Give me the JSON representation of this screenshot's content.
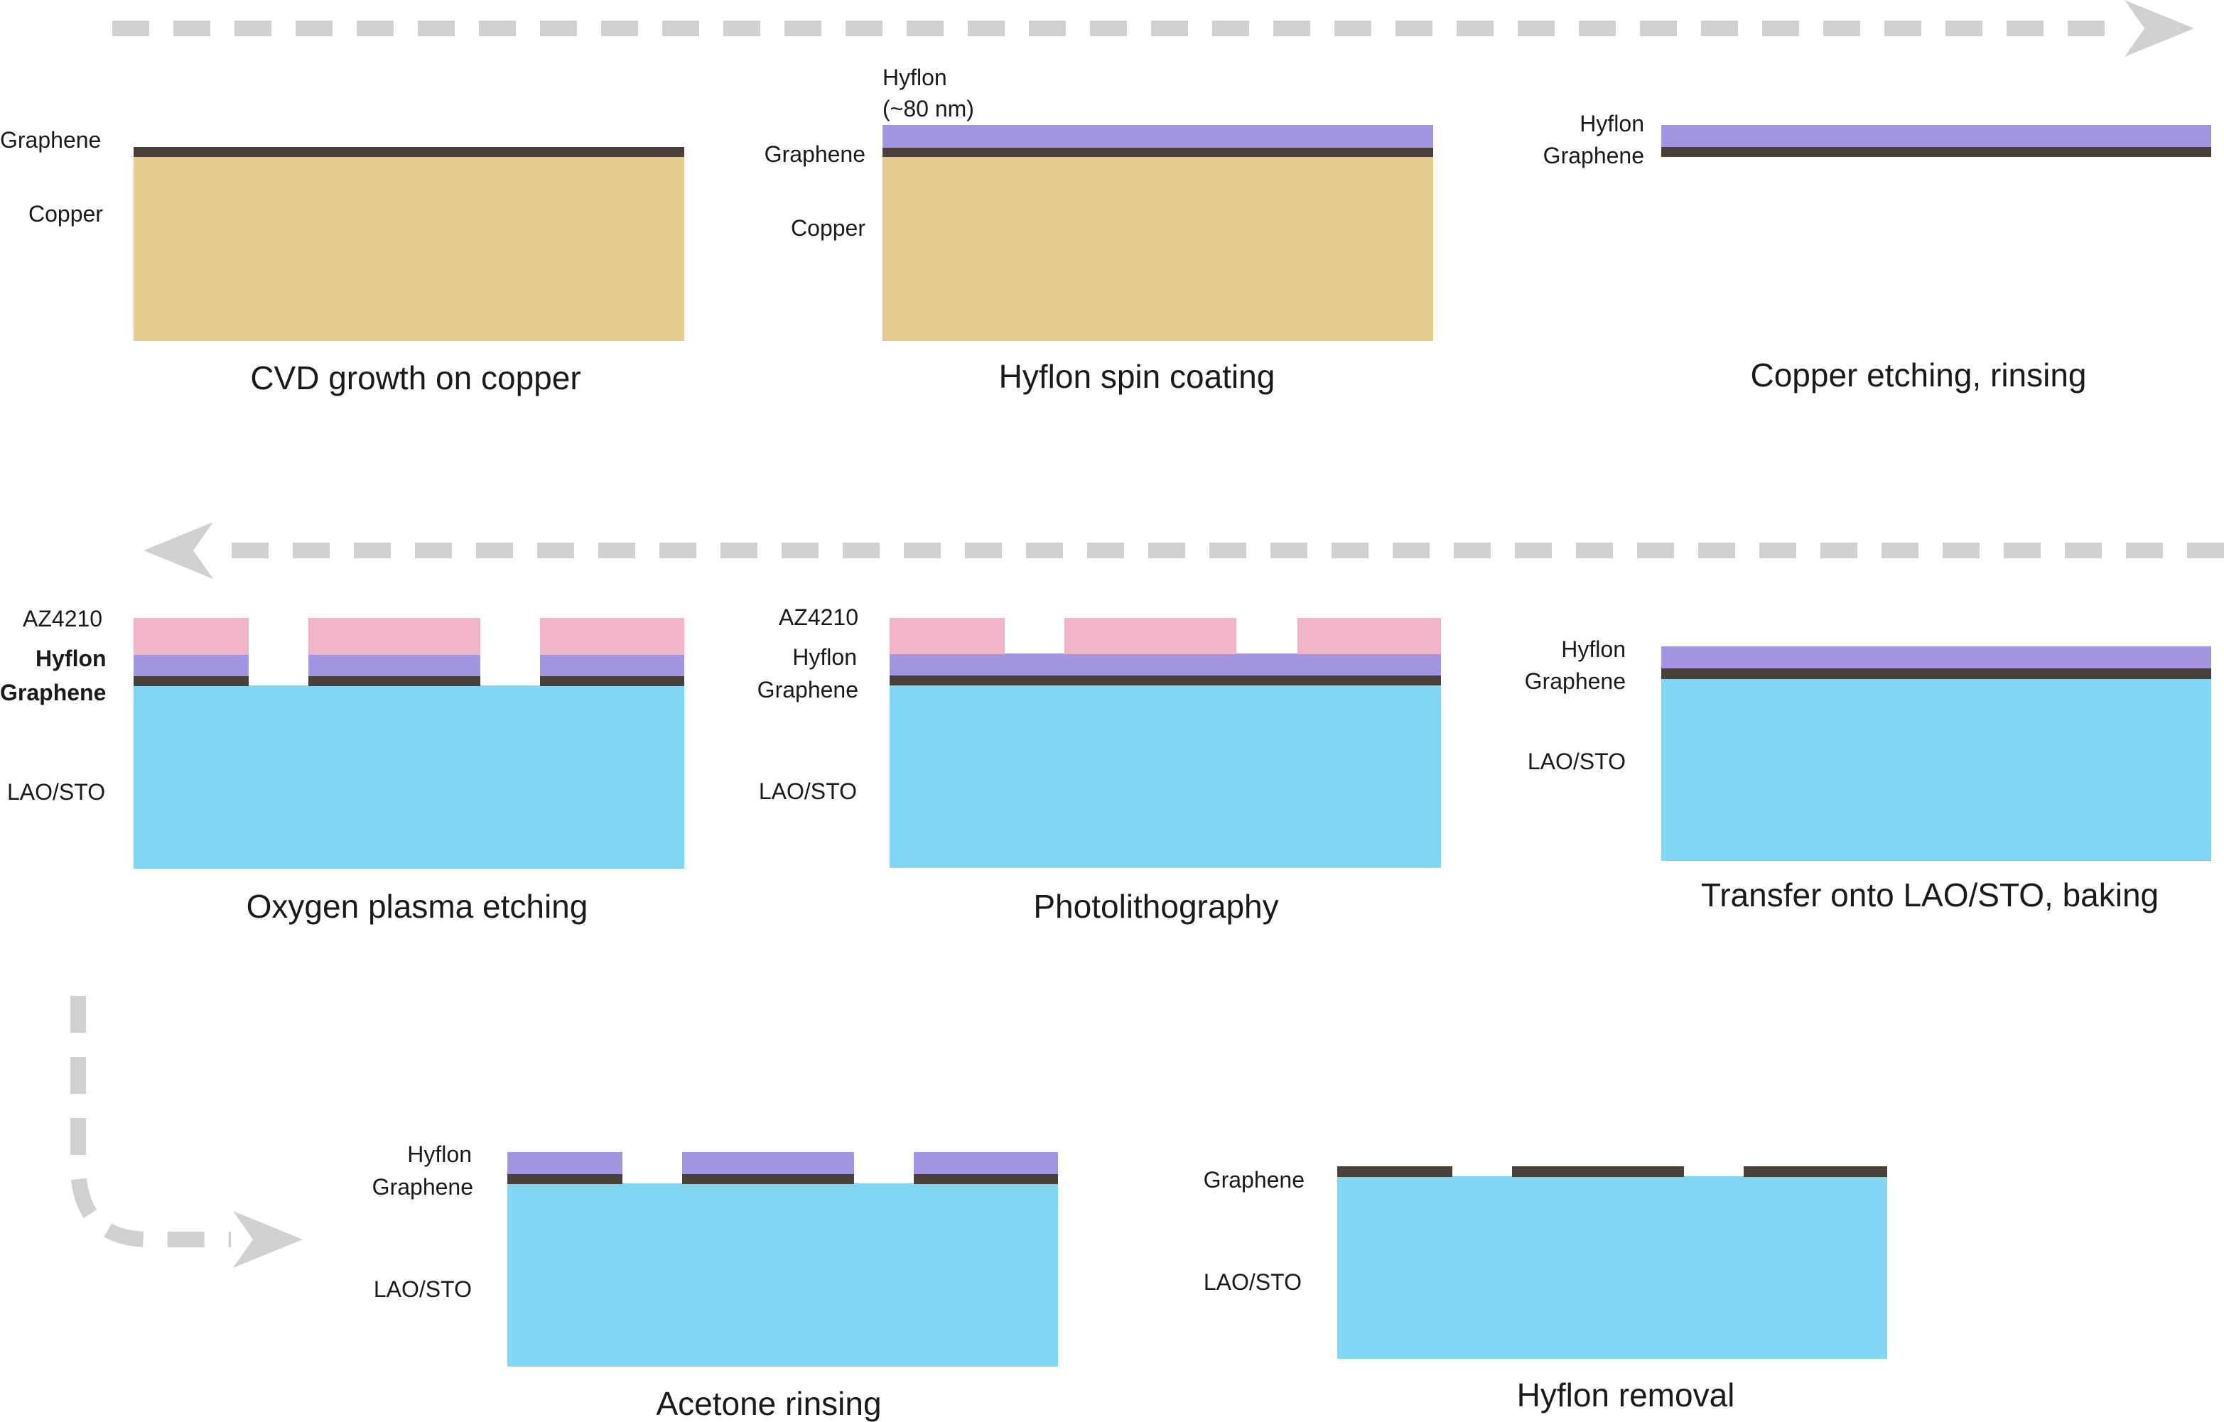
{
  "colors": {
    "copper": "#e4cc90",
    "graphene": "#4a403a",
    "hyflon": "#a294e0",
    "az4210": "#f2b4c8",
    "lao_sto": "#7fd7f3",
    "arrow": "#d0d0d0"
  },
  "steps": {
    "cvd": {
      "caption": "CVD growth on copper",
      "labels": {
        "graphene": "Graphene",
        "copper": "Copper"
      }
    },
    "spin": {
      "caption": "Hyflon spin coating",
      "labels": {
        "hyflon": "Hyflon",
        "hyflon_thickness": "(~80 nm)",
        "graphene": "Graphene",
        "copper": "Copper"
      }
    },
    "etch": {
      "caption": "Copper etching, rinsing",
      "labels": {
        "hyflon": "Hyflon",
        "graphene": "Graphene"
      }
    },
    "transfer": {
      "caption": "Transfer onto LAO/STO, baking",
      "labels": {
        "hyflon": "Hyflon",
        "graphene": "Graphene",
        "substrate": "LAO/STO"
      }
    },
    "photo": {
      "caption": "Photolithography",
      "labels": {
        "resist": "AZ4210",
        "hyflon": "Hyflon",
        "graphene": "Graphene",
        "substrate": "LAO/STO"
      }
    },
    "plasma": {
      "caption": "Oxygen plasma etching",
      "labels": {
        "resist": "AZ4210",
        "hyflon": "Hyflon",
        "graphene": "Graphene",
        "substrate": "LAO/STO"
      }
    },
    "acetone": {
      "caption": "Acetone rinsing",
      "labels": {
        "hyflon": "Hyflon",
        "graphene": "Graphene",
        "substrate": "LAO/STO"
      }
    },
    "removal": {
      "caption": "Hyflon removal",
      "labels": {
        "graphene": "Graphene",
        "substrate": "LAO/STO"
      }
    }
  }
}
